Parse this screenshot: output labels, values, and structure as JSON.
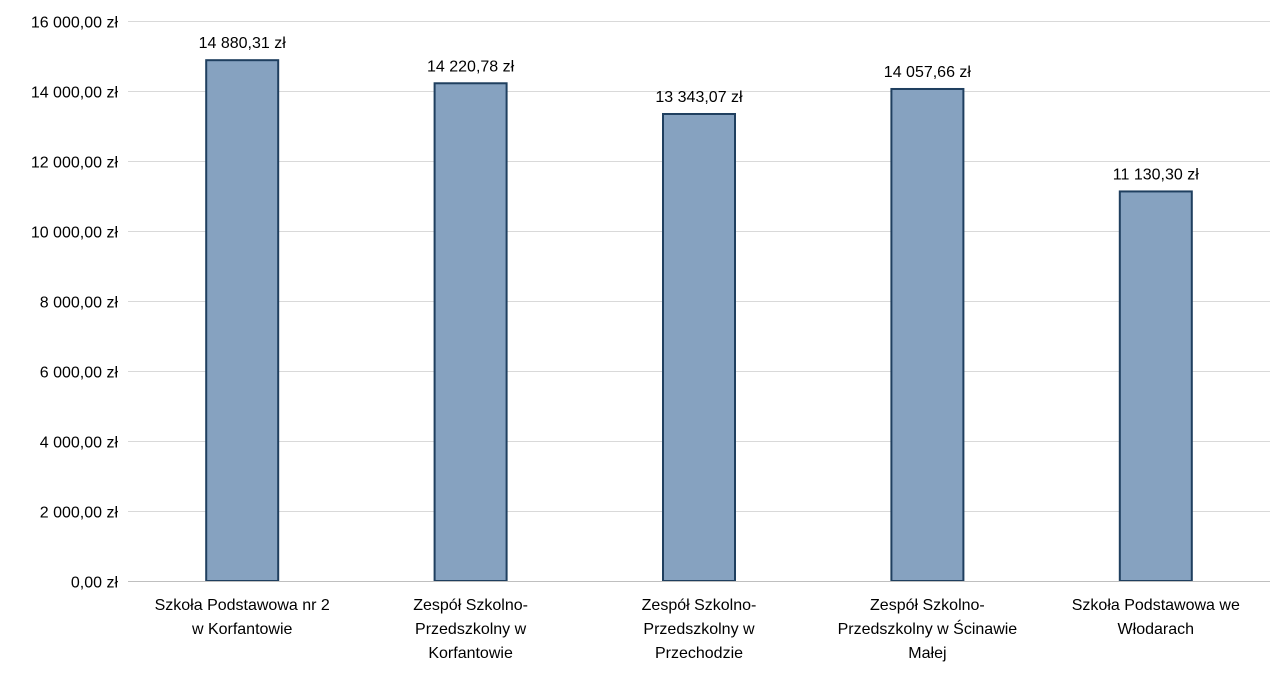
{
  "chart_data": {
    "type": "bar",
    "title": "",
    "xlabel": "",
    "ylabel": "",
    "categories": [
      [
        "Szkoła Podstawowa nr 2",
        "w Korfantowie"
      ],
      [
        "Zespół Szkolno-",
        "Przedszkolny w",
        "Korfantowie"
      ],
      [
        "Zespół Szkolno-",
        "Przedszkolny w",
        "Przechodzie"
      ],
      [
        "Zespół Szkolno-",
        "Przedszkolny w Ścinawie",
        "Małej"
      ],
      [
        "Szkoła Podstawowa we",
        "Włodarach"
      ]
    ],
    "values": [
      14880.31,
      14220.78,
      13343.07,
      14057.66,
      11130.3
    ],
    "data_labels": [
      "14 880,31 zł",
      "14 220,78 zł",
      "13 343,07 zł",
      "14 057,66 zł",
      "11 130,30 zł"
    ],
    "ylim": [
      0,
      16000
    ],
    "yticks": [
      0,
      2000,
      4000,
      6000,
      8000,
      10000,
      12000,
      14000,
      16000
    ],
    "ytick_labels": [
      "0,00 zł",
      "2 000,00 zł",
      "4 000,00 zł",
      "6 000,00 zł",
      "8 000,00 zł",
      "10 000,00 zł",
      "12 000,00 zł",
      "14 000,00 zł",
      "16 000,00 zł"
    ],
    "grid": true,
    "legend": "none",
    "colors": {
      "bar_fill": "#86a2c0",
      "bar_stroke": "#1f3f5f",
      "grid": "#d9d9d9",
      "axis": "#bfbfbf"
    }
  }
}
